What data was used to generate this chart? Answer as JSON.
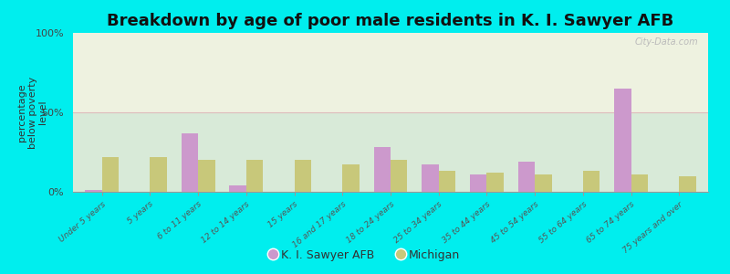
{
  "title": "Breakdown by age of poor male residents in K. I. Sawyer AFB",
  "ylabel": "percentage\nbelow poverty\nlevel",
  "categories": [
    "Under 5 years",
    "5 years",
    "6 to 11 years",
    "12 to 14 years",
    "15 years",
    "16 and 17 years",
    "18 to 24 years",
    "25 to 34 years",
    "35 to 44 years",
    "45 to 54 years",
    "55 to 64 years",
    "65 to 74 years",
    "75 years and over"
  ],
  "afb_values": [
    1,
    0,
    37,
    4,
    0,
    0,
    28,
    17,
    11,
    19,
    0,
    65,
    0
  ],
  "mi_values": [
    22,
    22,
    20,
    20,
    20,
    17,
    20,
    13,
    12,
    11,
    13,
    11,
    10
  ],
  "afb_color": "#cc99cc",
  "mi_color": "#c8c87a",
  "background_top": "#eef2e0",
  "background_bottom": "#d8ead8",
  "outer_bg": "#00eeee",
  "ylim": [
    0,
    105
  ],
  "yticks": [
    0,
    50,
    100
  ],
  "ytick_labels": [
    "0%",
    "50%",
    "100%"
  ],
  "title_fontsize": 13,
  "ylabel_fontsize": 8,
  "legend_afb": "K. I. Sawyer AFB",
  "legend_mi": "Michigan",
  "bar_width": 0.35,
  "gridline_color": "#ddbbbb",
  "watermark": "City-Data.com"
}
